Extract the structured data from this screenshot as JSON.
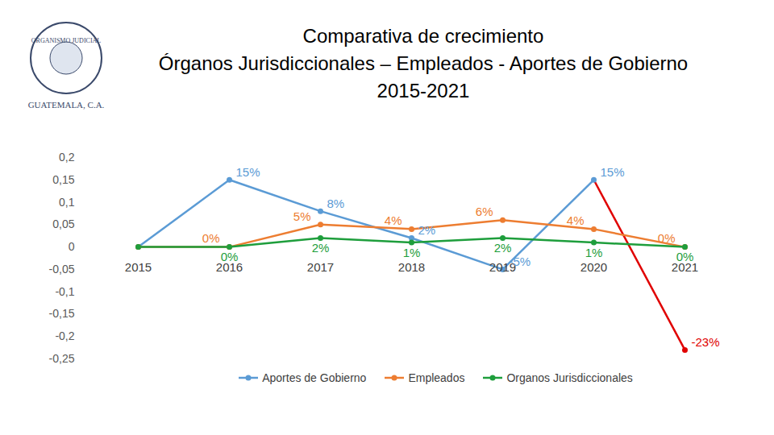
{
  "chart_data": {
    "type": "line",
    "title": "Comparativa de crecimiento",
    "subtitle": [
      "Órganos Jurisdiccionales – Empleados - Aportes de Gobierno",
      "2015-2021"
    ],
    "annotations": [
      "ORGANISMO JUDICIAL",
      "GUATEMALA, C.A."
    ],
    "categories": [
      "2015",
      "2016",
      "2017",
      "2018",
      "2019",
      "2020",
      "2021"
    ],
    "series": [
      {
        "name": "Aportes de Gobierno",
        "color": "#5b9bd5",
        "colors": [
          "#5b9bd5",
          "#5b9bd5",
          "#5b9bd5",
          "#5b9bd5",
          "#5b9bd5",
          "#5b9bd5",
          "#e00000"
        ],
        "values": [
          0,
          0.15,
          0.08,
          0.02,
          -0.05,
          0.15,
          -0.23
        ],
        "value_labels": [
          null,
          "15%",
          "8%",
          "2%",
          "-5%",
          "15%",
          "-23%"
        ]
      },
      {
        "name": "Empleados",
        "color": "#ed7d31",
        "values": [
          0,
          0,
          0.05,
          0.04,
          0.06,
          0.04,
          0
        ],
        "value_labels": [
          null,
          "0%",
          "5%",
          "4%",
          "6%",
          "4%",
          "0%"
        ]
      },
      {
        "name": "Organos Jurisdiccionales",
        "color": "#1e9e3c",
        "values": [
          0,
          0,
          0.02,
          0.01,
          0.02,
          0.01,
          0
        ],
        "value_labels": [
          null,
          "0%",
          "2%",
          "1%",
          "2%",
          "1%",
          "0%"
        ]
      }
    ],
    "ylim": [
      -0.25,
      0.2
    ],
    "yticks": [
      {
        "value": -0.25,
        "label": "-0,25"
      },
      {
        "value": -0.2,
        "label": "-0,2"
      },
      {
        "value": -0.15,
        "label": "-0,15"
      },
      {
        "value": -0.1,
        "label": "-0,1"
      },
      {
        "value": -0.05,
        "label": "-0,05"
      },
      0,
      {
        "value": 0.05,
        "label": "0,05"
      },
      {
        "value": 0.1,
        "label": "0,1"
      },
      {
        "value": 0.15,
        "label": "0,15"
      },
      {
        "value": 0.2,
        "label": "0,2"
      }
    ],
    "grid": false,
    "legend": "bottom",
    "data_labels": true,
    "marker": "circle"
  }
}
